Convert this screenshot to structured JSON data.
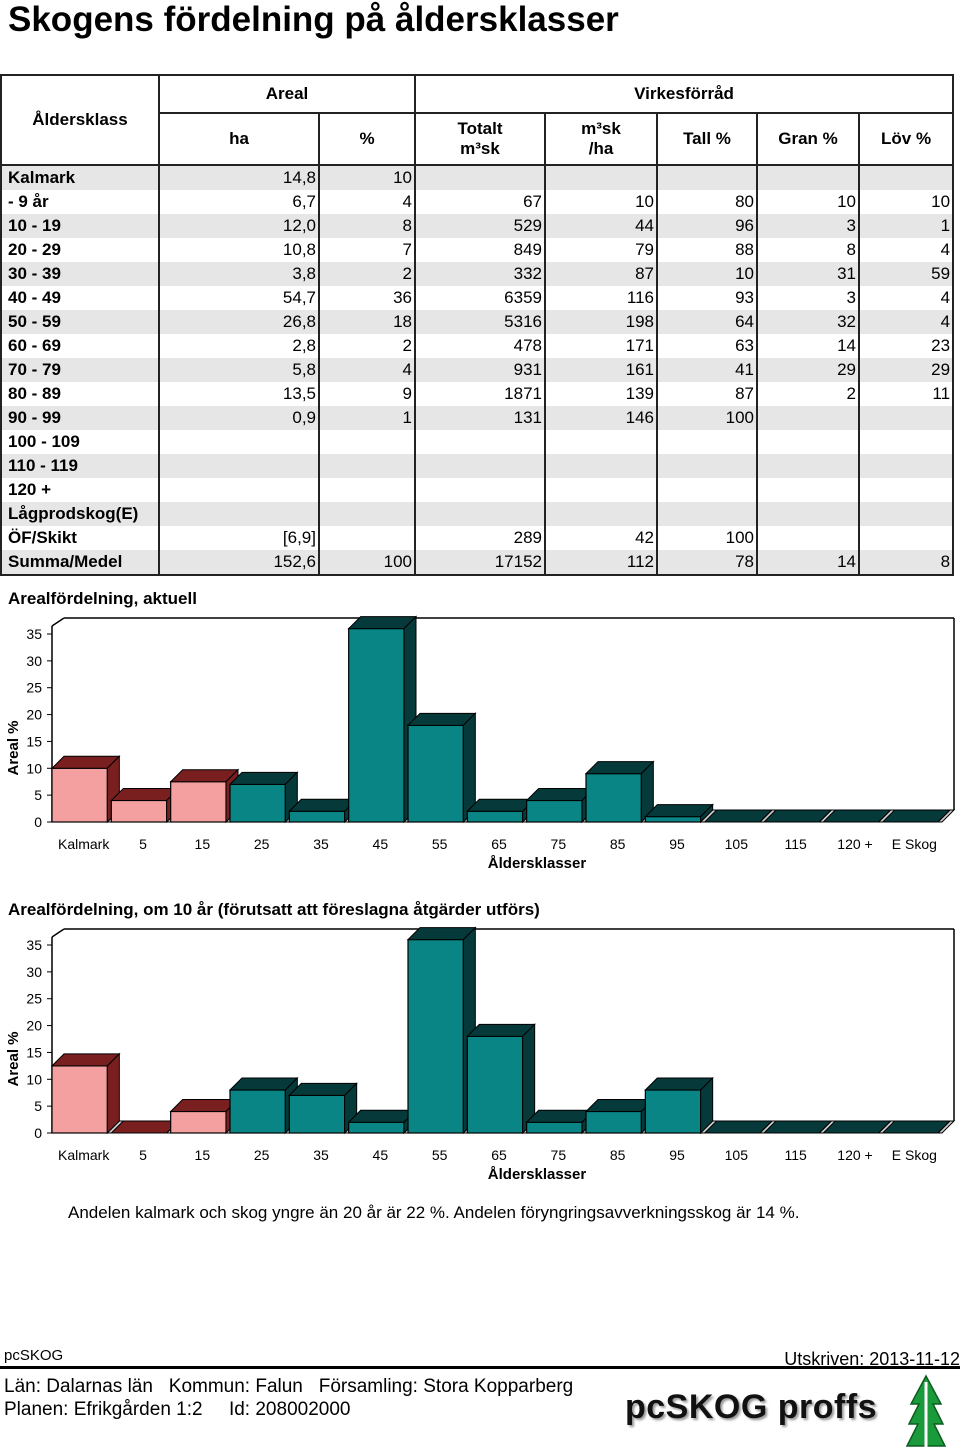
{
  "page": {
    "title": "Skogens fördelning på åldersklasser"
  },
  "table": {
    "header_ageclass": "Åldersklass",
    "header_areal": "Areal",
    "header_virkesforrad": "Virkesförråd",
    "columns": [
      "ha",
      "%",
      "Totalt m³sk",
      "m³sk /ha",
      "Tall %",
      "Gran %",
      "Löv %"
    ],
    "col_totalt_line1": "Totalt",
    "col_totalt_line2": "m³sk",
    "col_m3ha_line1": "m³sk",
    "col_m3ha_line2": "/ha",
    "rows": [
      [
        "Kalmark",
        "14,8",
        "10",
        "",
        "",
        "",
        "",
        ""
      ],
      [
        "- 9 år",
        "6,7",
        "4",
        "67",
        "10",
        "80",
        "10",
        "10"
      ],
      [
        "10 - 19",
        "12,0",
        "8",
        "529",
        "44",
        "96",
        "3",
        "1"
      ],
      [
        "20 - 29",
        "10,8",
        "7",
        "849",
        "79",
        "88",
        "8",
        "4"
      ],
      [
        "30 - 39",
        "3,8",
        "2",
        "332",
        "87",
        "10",
        "31",
        "59"
      ],
      [
        "40 - 49",
        "54,7",
        "36",
        "6359",
        "116",
        "93",
        "3",
        "4"
      ],
      [
        "50 - 59",
        "26,8",
        "18",
        "5316",
        "198",
        "64",
        "32",
        "4"
      ],
      [
        "60 - 69",
        "2,8",
        "2",
        "478",
        "171",
        "63",
        "14",
        "23"
      ],
      [
        "70 - 79",
        "5,8",
        "4",
        "931",
        "161",
        "41",
        "29",
        "29"
      ],
      [
        "80 - 89",
        "13,5",
        "9",
        "1871",
        "139",
        "87",
        "2",
        "11"
      ],
      [
        "90 - 99",
        "0,9",
        "1",
        "131",
        "146",
        "100",
        "",
        ""
      ],
      [
        "100 - 109",
        "",
        "",
        "",
        "",
        "",
        "",
        ""
      ],
      [
        "110 - 119",
        "",
        "",
        "",
        "",
        "",
        "",
        ""
      ],
      [
        "120 +",
        "",
        "",
        "",
        "",
        "",
        "",
        ""
      ],
      [
        "Lågprodskog(E)",
        "",
        "",
        "",
        "",
        "",
        "",
        ""
      ],
      [
        "ÖF/Skikt",
        "[6,9]",
        "",
        "289",
        "42",
        "100",
        "",
        ""
      ],
      [
        "Summa/Medel",
        "152,6",
        "100",
        "17152",
        "112",
        "78",
        "14",
        "8"
      ]
    ]
  },
  "colors": {
    "light_bar": "#f4a0a0",
    "light_side": "#7a1f1f",
    "dark_bar": "#0a8585",
    "dark_side": "#063a3a"
  },
  "chart_data": [
    {
      "type": "bar",
      "title": "Arealfördelning, aktuell",
      "xlabel": "Åldersklasser",
      "ylabel": "Areal %",
      "ylim": [
        0,
        35
      ],
      "yticks": [
        "0",
        "5",
        "10",
        "15",
        "20",
        "25",
        "30",
        "35"
      ],
      "categories": [
        "Kalmark",
        "5",
        "15",
        "25",
        "35",
        "45",
        "55",
        "65",
        "75",
        "85",
        "95",
        "105",
        "115",
        "120 +",
        "E Skog"
      ],
      "values": [
        10,
        4,
        7.5,
        7,
        2,
        36,
        18,
        2,
        4,
        9,
        1,
        0,
        0,
        0,
        0
      ],
      "bar_styles": [
        "light",
        "light",
        "light",
        "dark",
        "dark",
        "dark",
        "dark",
        "dark",
        "dark",
        "dark",
        "dark",
        "dark",
        "dark",
        "dark",
        "dark"
      ],
      "grid": false
    },
    {
      "type": "bar",
      "title": "Arealfördelning, om 10 år (förutsatt att föreslagna åtgärder utförs)",
      "xlabel": "Åldersklasser",
      "ylabel": "Areal %",
      "ylim": [
        0,
        35
      ],
      "yticks": [
        "0",
        "5",
        "10",
        "15",
        "20",
        "25",
        "30",
        "35"
      ],
      "categories": [
        "Kalmark",
        "5",
        "15",
        "25",
        "35",
        "45",
        "55",
        "65",
        "75",
        "85",
        "95",
        "105",
        "115",
        "120 +",
        "E Skog"
      ],
      "values": [
        12.5,
        0,
        4,
        8,
        7,
        2,
        36,
        18,
        2,
        4,
        8,
        0,
        0,
        0,
        0
      ],
      "bar_styles": [
        "light",
        "light",
        "light",
        "dark",
        "dark",
        "dark",
        "dark",
        "dark",
        "dark",
        "dark",
        "dark",
        "dark",
        "dark",
        "dark",
        "dark"
      ],
      "grid": false
    }
  ],
  "footnote": "Andelen kalmark och skog yngre än 20 år är 22 %. Andelen föryngringsavverkningsskog är 14 %.",
  "footer": {
    "app": "pcSKOG",
    "printed": "Utskriven: 2013-11-12",
    "line1": "Län: Dalarnas län   Kommun: Falun   Församling: Stora Kopparberg",
    "line2": "Planen: Efrikgården 1:2     Id: 208002000",
    "brand": "pcSKOG proffs"
  }
}
